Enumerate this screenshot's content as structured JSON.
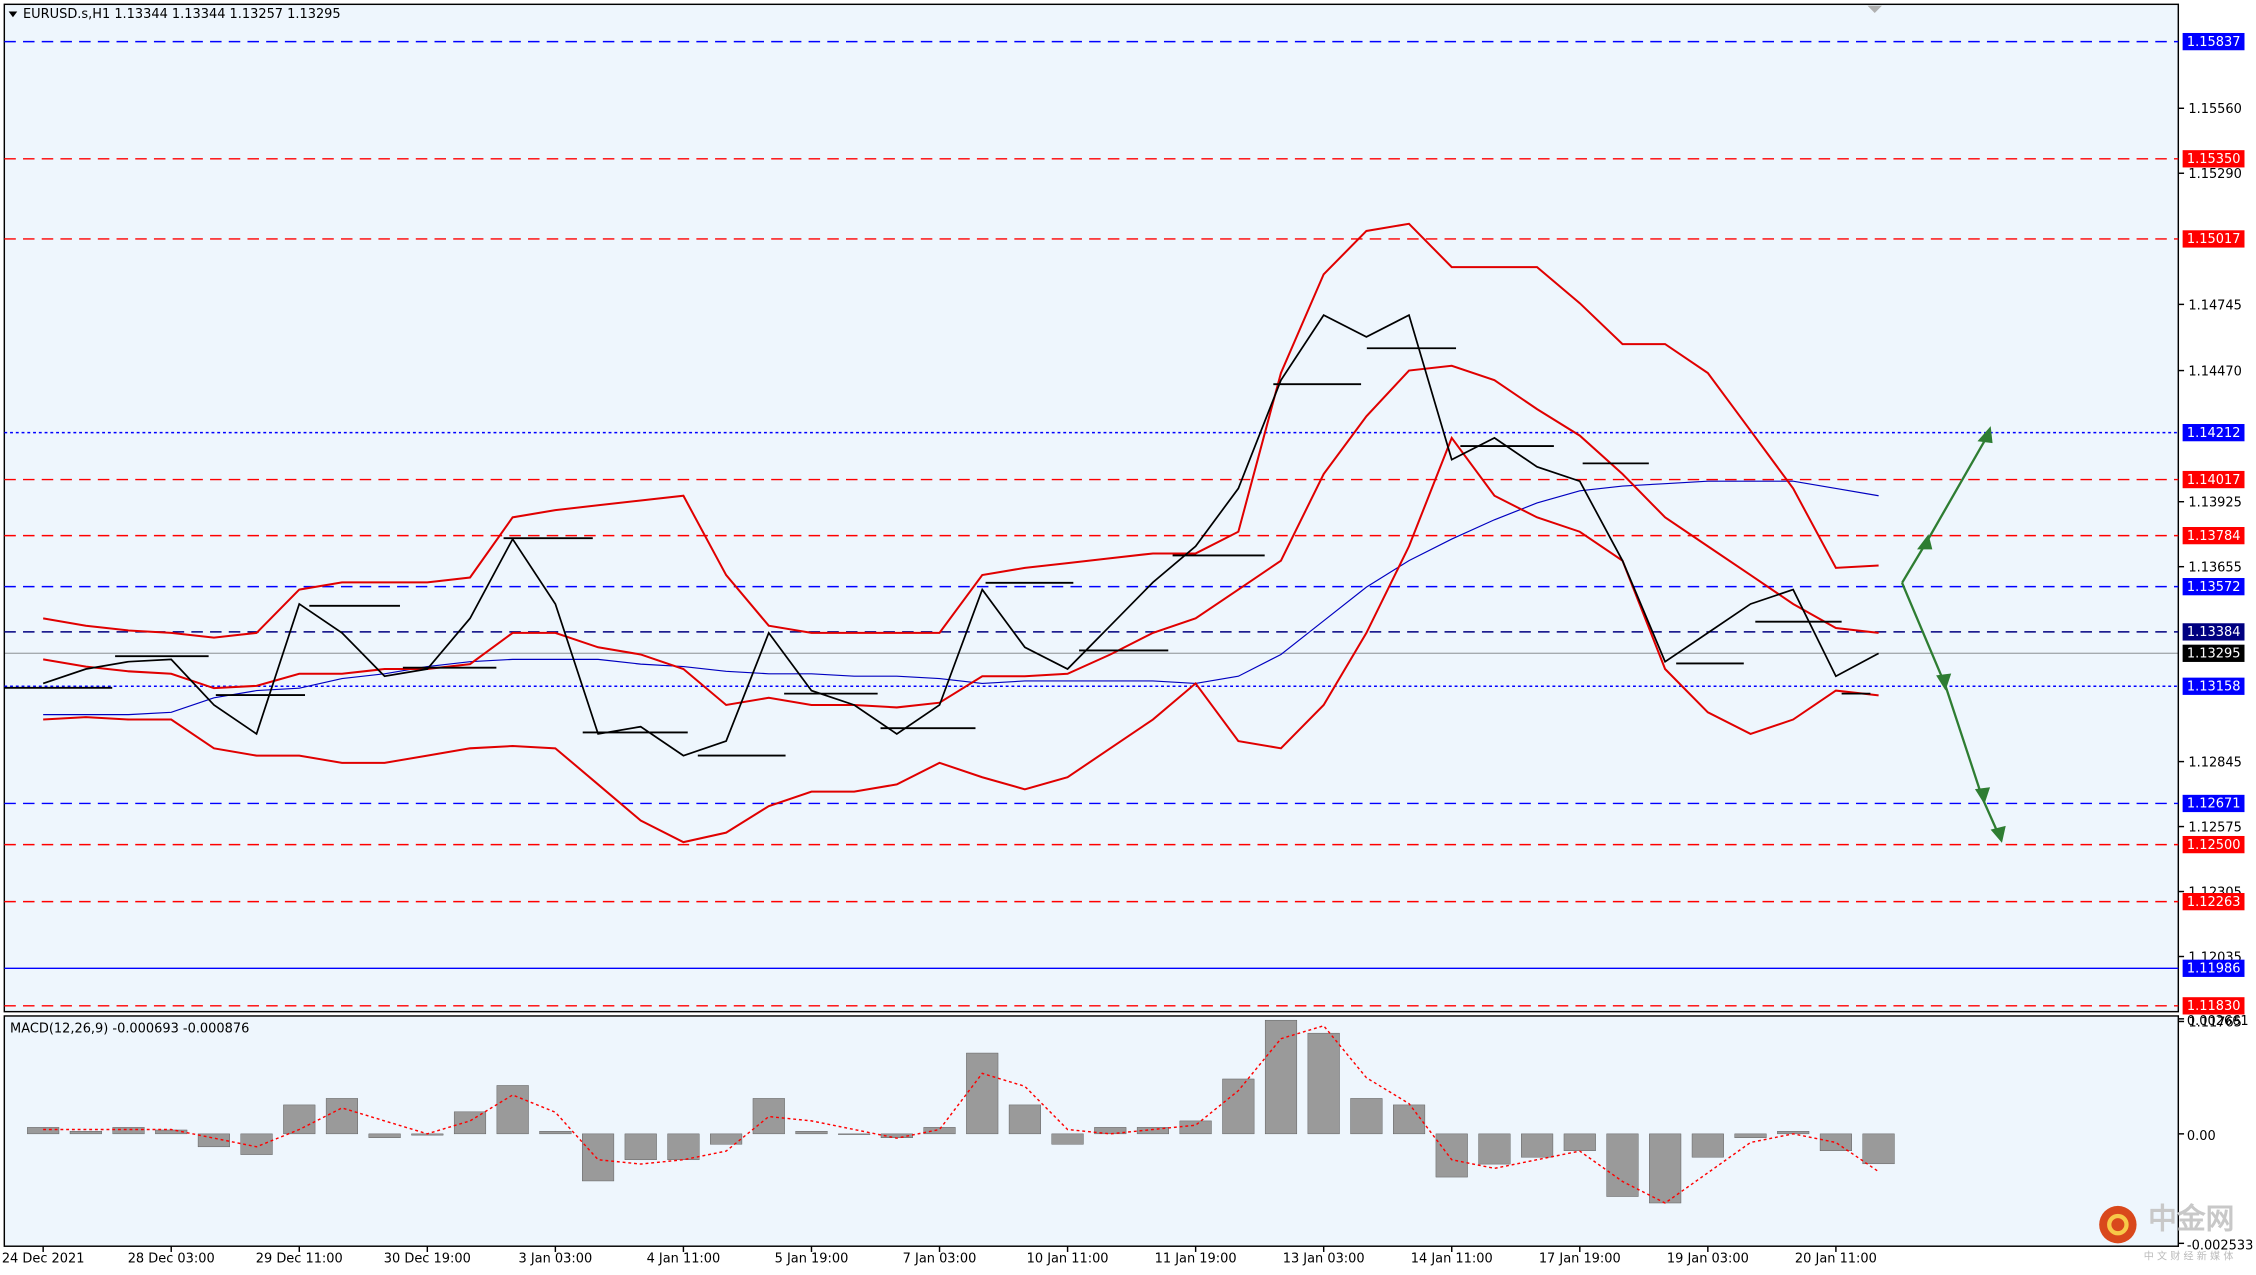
{
  "chart_data": [
    {
      "type": "line",
      "title": "EURUSD.s,H1  1.13344 1.13344 1.13257 1.13295",
      "categories": [
        "24 Dec 2021",
        null,
        null,
        "28 Dec 03:00",
        null,
        null,
        "29 Dec 11:00",
        null,
        null,
        "30 Dec 19:00",
        null,
        null,
        "3 Jan 03:00",
        null,
        null,
        "4 Jan 11:00",
        null,
        null,
        "5 Jan 19:00",
        null,
        null,
        "7 Jan 03:00",
        null,
        null,
        "10 Jan 11:00",
        null,
        null,
        "11 Jan 19:00",
        null,
        null,
        "13 Jan 03:00",
        null,
        null,
        "14 Jan 11:00",
        null,
        null,
        "17 Jan 19:00",
        null,
        null,
        "19 Jan 03:00",
        null,
        null,
        "20 Jan 11:00",
        null
      ],
      "series": [
        {
          "color": "#0000c0",
          "width": 0.8,
          "values": [
            1.1304,
            1.1304,
            1.1304,
            1.1305,
            1.1311,
            1.1314,
            1.1315,
            1.1319,
            1.1321,
            1.1324,
            1.1326,
            1.1327,
            1.1327,
            1.1327,
            1.1325,
            1.1324,
            1.1322,
            1.1321,
            1.1321,
            1.132,
            1.132,
            1.1319,
            1.1317,
            1.1318,
            1.1318,
            1.1318,
            1.1318,
            1.1317,
            1.132,
            1.1329,
            1.1343,
            1.1357,
            1.1368,
            1.1377,
            1.1385,
            1.1392,
            1.1397,
            1.1399,
            1.14,
            1.1401,
            1.1401,
            1.1401,
            1.1398,
            1.1395
          ]
        },
        {
          "color": "#e00000",
          "width": 1.4,
          "values": [
            1.1344,
            1.1341,
            1.1339,
            1.1338,
            1.1336,
            1.1338,
            1.1356,
            1.1359,
            1.1359,
            1.1359,
            1.1361,
            1.1386,
            1.1389,
            1.1391,
            1.1393,
            1.1395,
            1.1362,
            1.1341,
            1.1338,
            1.1338,
            1.1338,
            1.1338,
            1.1362,
            1.1365,
            1.1367,
            1.1369,
            1.1371,
            1.1371,
            1.138,
            1.1446,
            1.1487,
            1.1505,
            1.1508,
            1.149,
            1.149,
            1.149,
            1.1475,
            1.1458,
            1.1458,
            1.1446,
            1.1422,
            1.1398,
            1.1365,
            1.1366
          ]
        },
        {
          "color": "#e00000",
          "width": 1.4,
          "values": [
            1.1327,
            1.1324,
            1.1322,
            1.1321,
            1.1315,
            1.1316,
            1.1321,
            1.1321,
            1.1323,
            1.1323,
            1.1325,
            1.1338,
            1.1338,
            1.1332,
            1.1329,
            1.1323,
            1.1308,
            1.1311,
            1.1308,
            1.1308,
            1.1307,
            1.1309,
            1.132,
            1.132,
            1.1321,
            1.1329,
            1.1338,
            1.1344,
            1.1356,
            1.1368,
            1.1404,
            1.1428,
            1.1447,
            1.1449,
            1.1443,
            1.1431,
            1.142,
            1.1404,
            1.1386,
            1.1374,
            1.1362,
            1.135,
            1.134,
            1.1338
          ]
        },
        {
          "color": "#e00000",
          "width": 1.4,
          "values": [
            1.1302,
            1.1303,
            1.1302,
            1.1302,
            1.129,
            1.1287,
            1.1287,
            1.1284,
            1.1284,
            1.1287,
            1.129,
            1.1291,
            1.129,
            1.1275,
            1.126,
            1.1251,
            1.1255,
            1.1266,
            1.1272,
            1.1272,
            1.1275,
            1.1284,
            1.1278,
            1.1273,
            1.1278,
            1.129,
            1.1302,
            1.1317,
            1.1293,
            1.129,
            1.1308,
            1.1338,
            1.1374,
            1.1419,
            1.1395,
            1.1386,
            1.138,
            1.1368,
            1.1323,
            1.1305,
            1.1296,
            1.1302,
            1.1314,
            1.1312
          ]
        },
        {
          "color": "#000000",
          "width": 1.2,
          "values": [
            1.1317,
            1.1323,
            1.1326,
            1.1327,
            1.1308,
            1.1296,
            1.135,
            1.1338,
            1.132,
            1.1323,
            1.1344,
            1.1377,
            1.135,
            1.1296,
            1.1299,
            1.1287,
            1.1293,
            1.1338,
            1.1314,
            1.1308,
            1.1296,
            1.1308,
            1.1356,
            1.1332,
            1.1323,
            1.1341,
            1.1359,
            1.1374,
            1.1398,
            1.1443,
            1.147,
            1.1461,
            1.147,
            1.141,
            1.1419,
            1.1407,
            1.1401,
            1.1368,
            1.1326,
            1.1338,
            1.135,
            1.1356,
            1.132,
            1.13295
          ]
        }
      ],
      "levels": [
        {
          "value": 1.15837,
          "label": "1.15837",
          "color": "#0000ff",
          "dash": "dashed"
        },
        {
          "value": 1.1535,
          "label": "1.15350",
          "color": "#ff0000",
          "dash": "dashed"
        },
        {
          "value": 1.15017,
          "label": "1.15017",
          "color": "#ff0000",
          "dash": "dashed"
        },
        {
          "value": 1.14212,
          "label": "1.14212",
          "color": "#0000ff",
          "dash": "dotted"
        },
        {
          "value": 1.14017,
          "label": "1.14017",
          "color": "#ff0000",
          "dash": "dashed"
        },
        {
          "value": 1.13784,
          "label": "1.13784",
          "color": "#ff0000",
          "dash": "dashed"
        },
        {
          "value": 1.13572,
          "label": "1.13572",
          "color": "#0000ff",
          "dash": "dashed"
        },
        {
          "value": 1.13384,
          "label": "1.13384",
          "color": "#000080",
          "dash": "dashed"
        },
        {
          "value": 1.13295,
          "label": "1.13295",
          "color": "#000000",
          "dash": "solid"
        },
        {
          "value": 1.13158,
          "label": "1.13158",
          "color": "#0000ff",
          "dash": "dotted"
        },
        {
          "value": 1.12671,
          "label": "1.12671",
          "color": "#0000ff",
          "dash": "dashed"
        },
        {
          "value": 1.125,
          "label": "1.12500",
          "color": "#ff0000",
          "dash": "dashed"
        },
        {
          "value": 1.12263,
          "label": "1.12263",
          "color": "#ff0000",
          "dash": "dashed"
        },
        {
          "value": 1.11986,
          "label": "1.11986",
          "color": "#0000ff",
          "dash": "solid"
        },
        {
          "value": 1.1183,
          "label": "1.11830",
          "color": "#ff0000",
          "dash": "dashed"
        }
      ],
      "ylim": [
        1.11752,
        1.15992
      ],
      "yticks": [
        {
          "value": 1.1556,
          "label": "1.15560"
        },
        {
          "value": 1.1529,
          "label": "1.15290"
        },
        1.14745,
        {
          "value": 1.1447,
          "label": "1.14470"
        },
        1.13925,
        1.13655,
        1.12845,
        1.12575,
        1.12305,
        1.12035,
        1.11765
      ]
    },
    {
      "type": "macd",
      "title": "MACD(12,26,9) -0.000693 -0.000876",
      "series": [
        {
          "type": "bar",
          "color": "#9a9a9a",
          "values": [
            0.00015,
            6e-05,
            0.00015,
            9e-05,
            -0.0003,
            -0.00048,
            0.00067,
            0.00082,
            -9e-05,
            -3e-05,
            0.00051,
            0.00112,
            6e-05,
            -0.00109,
            -0.0006,
            -0.0006,
            -0.00024,
            0.00082,
            6e-05,
            0,
            -9e-05,
            0.00015,
            0.00187,
            0.00067,
            -0.00024,
            0.00015,
            0.00015,
            0.0003,
            0.00127,
            0.00263,
            0.00233,
            0.00082,
            0.00067,
            -0.001,
            -0.0007,
            -0.00054,
            -0.00039,
            -0.00145,
            -0.0016,
            -0.00054,
            -9e-05,
            6e-05,
            -0.00039,
            -0.000693
          ]
        },
        {
          "type": "line",
          "color": "#ff0000",
          "values": [
            0.0001,
            0.0001,
            0.0001,
            0.0001,
            -0.0001,
            -0.0003,
            0.0001,
            0.0006,
            0.0003,
            0,
            0.0003,
            0.0009,
            0.0005,
            -0.0006,
            -0.0007,
            -0.0006,
            -0.0004,
            0.0004,
            0.0003,
            0.0001,
            -0.0001,
            0.0001,
            0.0014,
            0.0011,
            0.0001,
            0,
            0.0001,
            0.0002,
            0.001,
            0.0022,
            0.0025,
            0.0013,
            0.0007,
            -0.0006,
            -0.0008,
            -0.0006,
            -0.0004,
            -0.0011,
            -0.0016,
            -0.0009,
            -0.0002,
            0,
            -0.0002,
            -0.000876
          ]
        }
      ],
      "ylim": [
        -0.002533,
        0.002661
      ],
      "yticks": [
        0.002661,
        {
          "value": 0,
          "label": "0.00"
        },
        -0.002533
      ]
    }
  ],
  "watermark": {
    "name": "中金网",
    "tagline": "中 文 财 经 新 媒 体"
  }
}
